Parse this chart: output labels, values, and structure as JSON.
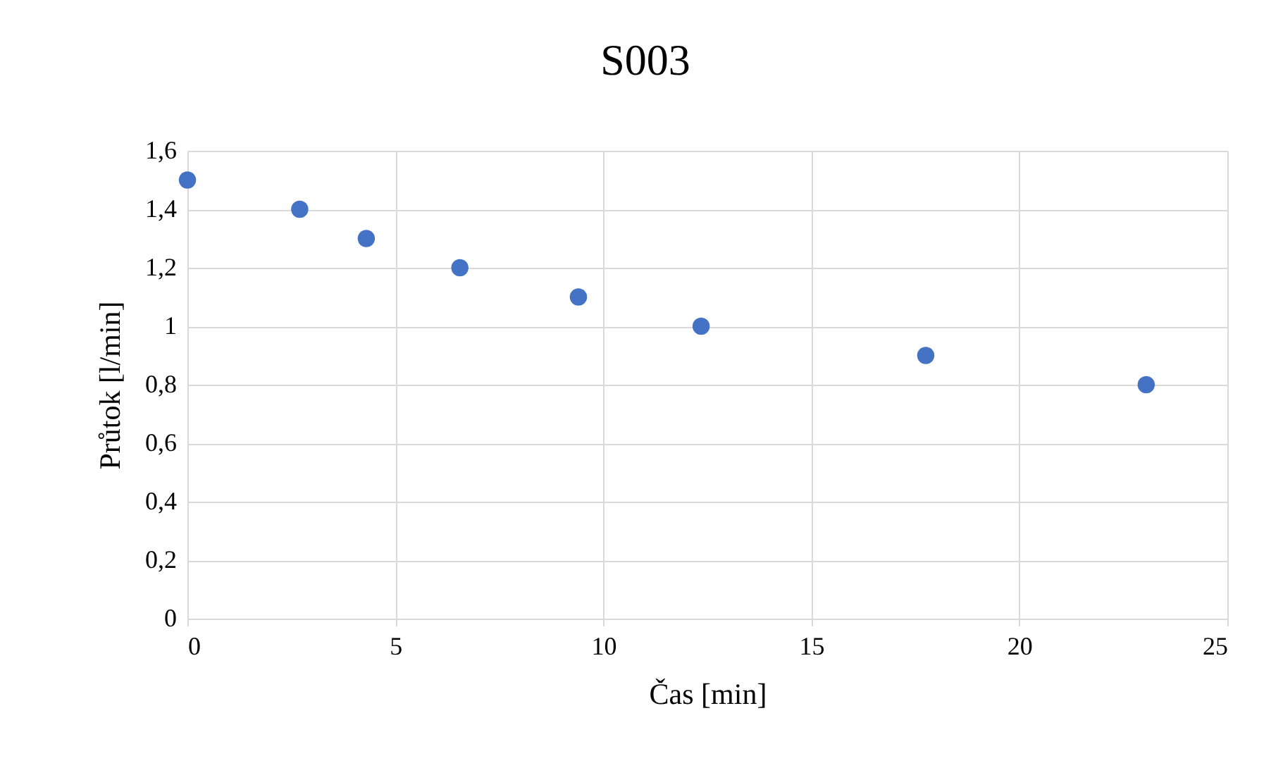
{
  "chart_data": {
    "type": "scatter",
    "title": "S003",
    "xlabel": "Čas [min]",
    "ylabel": "Průtok [l/min]",
    "x": [
      0,
      2.7,
      4.3,
      6.55,
      9.4,
      12.35,
      17.75,
      23.05
    ],
    "series": [
      {
        "color": "#4472c4",
        "values": [
          1.5,
          1.4,
          1.3,
          1.2,
          1.1,
          1.0,
          0.9,
          0.8
        ]
      }
    ],
    "xlim": [
      0,
      25
    ],
    "xticks": [
      0,
      5,
      10,
      15,
      20,
      25
    ],
    "ylim": [
      0,
      1.6
    ],
    "yticks": [
      0,
      {
        "value": 0.2,
        "label": "0,2"
      },
      {
        "value": 0.4,
        "label": "0,4"
      },
      {
        "value": 0.6,
        "label": "0,6"
      },
      {
        "value": 0.8,
        "label": "0,8"
      },
      1,
      {
        "value": 1.2,
        "label": "1,2"
      },
      {
        "value": 1.4,
        "label": "1,4"
      },
      {
        "value": 1.6,
        "label": "1,6"
      }
    ],
    "grid": true,
    "marker": "circle"
  }
}
